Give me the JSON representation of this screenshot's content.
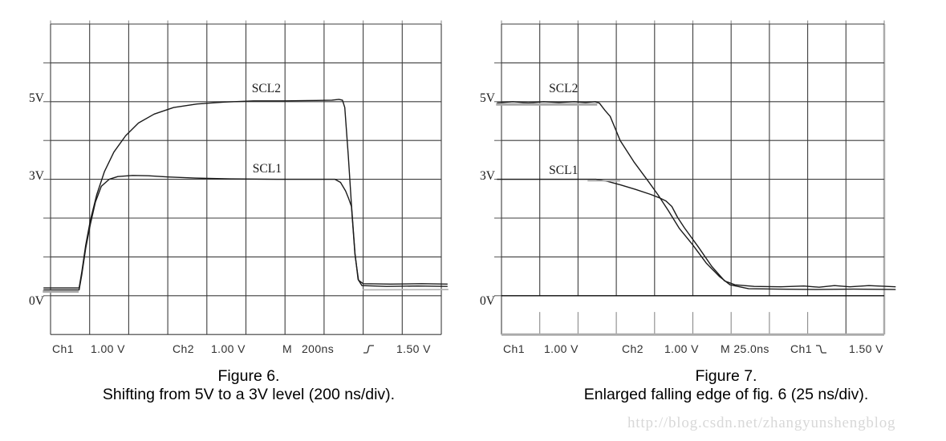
{
  "watermark": {
    "text": "http://blog.csdn.net/zhangyunshengblog"
  },
  "chart_data": [
    {
      "type": "line",
      "title": "Figure 6.",
      "subtitle": "Shifting from 5V to a 3V level (200 ns/div).",
      "timebase_ns_per_div": 200,
      "volts_per_div": 1.0,
      "grid": {
        "cols": 10,
        "rows": 8,
        "grid_on": true
      },
      "xlim_divisions": [
        0,
        10
      ],
      "ylim_volts": [
        -1,
        7
      ],
      "y_ticks": [
        {
          "label": "5V",
          "volts": 5
        },
        {
          "label": "3V",
          "volts": 3
        },
        {
          "label": "0V",
          "volts": 0
        }
      ],
      "trace_labels": [
        {
          "text": "SCL2",
          "x_div": 5.15,
          "volts_top": 5.49
        },
        {
          "text": "SCL1",
          "x_div": 5.17,
          "volts_top": 3.43
        }
      ],
      "status_bar": [
        {
          "text": "Ch1"
        },
        {
          "text": "1.00 V"
        },
        {
          "text": "Ch2"
        },
        {
          "text": "1.00 V"
        },
        {
          "text": "M"
        },
        {
          "text": "200ns"
        },
        {
          "icon": "rising-edge-trigger"
        },
        {
          "text": "1.50 V"
        }
      ],
      "series": [
        {
          "name": "SCL2",
          "style": "trace",
          "points_div_volts": [
            [
              -0.18,
              0.2
            ],
            [
              0.73,
              0.2
            ],
            [
              0.8,
              0.62
            ],
            [
              0.9,
              1.3
            ],
            [
              1.02,
              1.95
            ],
            [
              1.18,
              2.6
            ],
            [
              1.38,
              3.2
            ],
            [
              1.62,
              3.7
            ],
            [
              1.92,
              4.12
            ],
            [
              2.25,
              4.45
            ],
            [
              2.65,
              4.68
            ],
            [
              3.15,
              4.85
            ],
            [
              3.75,
              4.94
            ],
            [
              4.45,
              4.99
            ],
            [
              5.2,
              5.02
            ],
            [
              6.0,
              5.02
            ],
            [
              6.8,
              5.03
            ],
            [
              7.2,
              5.04
            ],
            [
              7.38,
              5.06
            ],
            [
              7.47,
              5.04
            ],
            [
              7.53,
              4.85
            ],
            [
              7.62,
              3.6
            ],
            [
              7.7,
              2.35
            ],
            [
              7.79,
              1.1
            ],
            [
              7.87,
              0.42
            ],
            [
              7.97,
              0.26
            ],
            [
              8.6,
              0.24
            ],
            [
              9.4,
              0.25
            ],
            [
              10.16,
              0.24
            ]
          ]
        },
        {
          "name": "SCL1",
          "style": "trace",
          "points_div_volts": [
            [
              -0.18,
              0.15
            ],
            [
              0.73,
              0.15
            ],
            [
              0.8,
              0.55
            ],
            [
              0.9,
              1.22
            ],
            [
              1.02,
              1.85
            ],
            [
              1.15,
              2.42
            ],
            [
              1.3,
              2.82
            ],
            [
              1.5,
              3.0
            ],
            [
              1.72,
              3.07
            ],
            [
              2.1,
              3.1
            ],
            [
              2.5,
              3.09
            ],
            [
              3.0,
              3.06
            ],
            [
              3.7,
              3.03
            ],
            [
              4.6,
              3.01
            ],
            [
              5.8,
              3.0
            ],
            [
              7.28,
              3.0
            ],
            [
              7.42,
              2.92
            ],
            [
              7.55,
              2.7
            ],
            [
              7.63,
              2.5
            ],
            [
              7.7,
              2.3
            ],
            [
              7.79,
              1.06
            ],
            [
              7.88,
              0.4
            ],
            [
              8.0,
              0.31
            ],
            [
              8.7,
              0.3
            ],
            [
              9.5,
              0.31
            ],
            [
              10.16,
              0.3
            ]
          ]
        },
        {
          "name": "channel-overlap-band-start",
          "style": "band",
          "points_div_volts": [
            [
              -0.2,
              0.11
            ],
            [
              0.72,
              0.11
            ]
          ]
        },
        {
          "name": "channel-overlap-band-settle",
          "style": "band-thin",
          "points_div_volts": [
            [
              7.99,
              0.15
            ],
            [
              10.18,
              0.16
            ]
          ]
        }
      ]
    },
    {
      "type": "line",
      "title": "Figure 7.",
      "subtitle": "Enlarged falling edge of fig. 6 (25 ns/div).",
      "timebase_ns_per_div": 25,
      "volts_per_div": 1.0,
      "grid": {
        "cols": 10,
        "rows": 8,
        "grid_on": true
      },
      "xlim_divisions": [
        0,
        10
      ],
      "ylim_volts": [
        -1,
        7
      ],
      "y_ticks": [
        {
          "label": "5V",
          "volts": 5
        },
        {
          "label": "3V",
          "volts": 3
        },
        {
          "label": "0V",
          "volts": 0
        }
      ],
      "trace_labels": [
        {
          "text": "SCL2",
          "x_div": 1.24,
          "volts_top": 5.49
        },
        {
          "text": "SCL1",
          "x_div": 1.24,
          "volts_top": 3.38
        }
      ],
      "status_bar": [
        {
          "text": "Ch1"
        },
        {
          "text": "1.00 V"
        },
        {
          "text": "Ch2"
        },
        {
          "text": "1.00 V"
        },
        {
          "text": "M 25.0ns"
        },
        {
          "text": "Ch1"
        },
        {
          "icon": "falling-edge-trigger"
        },
        {
          "text": "1.50 V"
        }
      ],
      "series": [
        {
          "name": "SCL2",
          "style": "trace",
          "points_div_volts": [
            [
              -0.12,
              4.97
            ],
            [
              0.3,
              5.0
            ],
            [
              0.7,
              4.97
            ],
            [
              1.1,
              5.0
            ],
            [
              1.5,
              4.98
            ],
            [
              1.9,
              5.0
            ],
            [
              2.2,
              4.98
            ],
            [
              2.45,
              5.0
            ],
            [
              2.56,
              4.96
            ],
            [
              2.7,
              4.78
            ],
            [
              2.84,
              4.62
            ],
            [
              3.1,
              4.0
            ],
            [
              3.46,
              3.45
            ],
            [
              3.82,
              2.97
            ],
            [
              4.09,
              2.6
            ],
            [
              4.36,
              2.19
            ],
            [
              4.65,
              1.73
            ],
            [
              4.99,
              1.32
            ],
            [
              5.35,
              0.84
            ],
            [
              5.7,
              0.49
            ],
            [
              5.97,
              0.28
            ],
            [
              6.46,
              0.18
            ],
            [
              7.2,
              0.17
            ],
            [
              8.2,
              0.16
            ],
            [
              9.2,
              0.17
            ],
            [
              10.3,
              0.16
            ]
          ]
        },
        {
          "name": "SCL1",
          "style": "trace",
          "points_div_volts": [
            [
              -0.12,
              3.0
            ],
            [
              1.0,
              3.0
            ],
            [
              2.0,
              3.0
            ],
            [
              2.47,
              3.0
            ],
            [
              2.75,
              2.95
            ],
            [
              3.1,
              2.86
            ],
            [
              3.5,
              2.74
            ],
            [
              3.9,
              2.61
            ],
            [
              4.13,
              2.52
            ],
            [
              4.3,
              2.44
            ],
            [
              4.45,
              2.3
            ],
            [
              4.6,
              2.02
            ],
            [
              4.78,
              1.75
            ],
            [
              5.14,
              1.26
            ],
            [
              5.49,
              0.76
            ],
            [
              5.83,
              0.38
            ],
            [
              6.1,
              0.28
            ],
            [
              6.6,
              0.24
            ],
            [
              7.3,
              0.23
            ],
            [
              7.9,
              0.25
            ],
            [
              8.3,
              0.22
            ],
            [
              8.7,
              0.26
            ],
            [
              9.1,
              0.23
            ],
            [
              9.6,
              0.26
            ],
            [
              10.3,
              0.23
            ]
          ]
        },
        {
          "name": "channel-overlap-band-5v",
          "style": "band",
          "points_div_volts": [
            [
              -0.14,
              4.93
            ],
            [
              2.5,
              4.93
            ]
          ]
        },
        {
          "name": "channel-overlap-band-3v",
          "style": "band-thin",
          "points_div_volts": [
            [
              2.25,
              2.96
            ],
            [
              3.1,
              2.96
            ]
          ]
        }
      ]
    }
  ]
}
